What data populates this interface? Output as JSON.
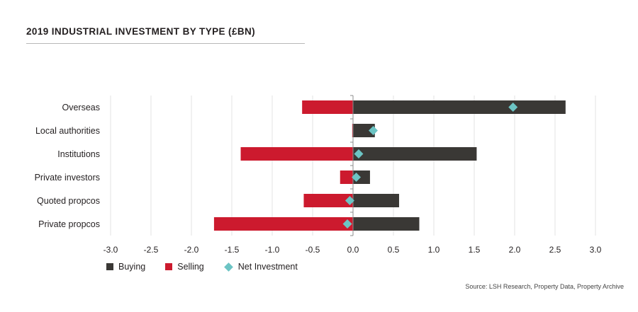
{
  "title": "2019 INDUSTRIAL INVESTMENT BY TYPE (£BN)",
  "source": "Source: LSH Research, Property Data, Property Archive",
  "colors": {
    "buying": "#3a3835",
    "selling": "#cc1a2e",
    "net": "#6cc4c4",
    "grid": "#e3e3e3",
    "axis": "#8c8c8c"
  },
  "chart_data": {
    "type": "bar",
    "orientation": "horizontal",
    "categories": [
      "Overseas",
      "Local authorities",
      "Institutions",
      "Private investors",
      "Quoted propcos",
      "Private propcos"
    ],
    "series": [
      {
        "name": "Buying",
        "values": [
          2.63,
          0.27,
          1.53,
          0.21,
          0.57,
          0.82
        ]
      },
      {
        "name": "Selling",
        "values": [
          -0.63,
          -0.01,
          -1.39,
          -0.16,
          -0.61,
          -1.72
        ]
      },
      {
        "name": "Net Investment",
        "values": [
          1.98,
          0.25,
          0.07,
          0.04,
          -0.04,
          -0.07
        ]
      }
    ],
    "xlim": [
      -3.0,
      3.0
    ],
    "xtick_values": [
      -3.0,
      -2.5,
      -2.0,
      -1.5,
      -1.0,
      -0.5,
      0.0,
      0.5,
      1.0,
      1.5,
      2.0,
      2.5,
      3.0
    ],
    "xtick_labels": [
      "-3.0",
      "-2.5",
      "-2.0",
      "-1.5",
      "-1.0",
      "-0.5",
      "0.0",
      "0.5",
      "1.0",
      "1.5",
      "2.0",
      "2.5",
      "3.0"
    ],
    "xlabel": "",
    "ylabel": "",
    "grid": true,
    "legend": "bottom-left"
  }
}
